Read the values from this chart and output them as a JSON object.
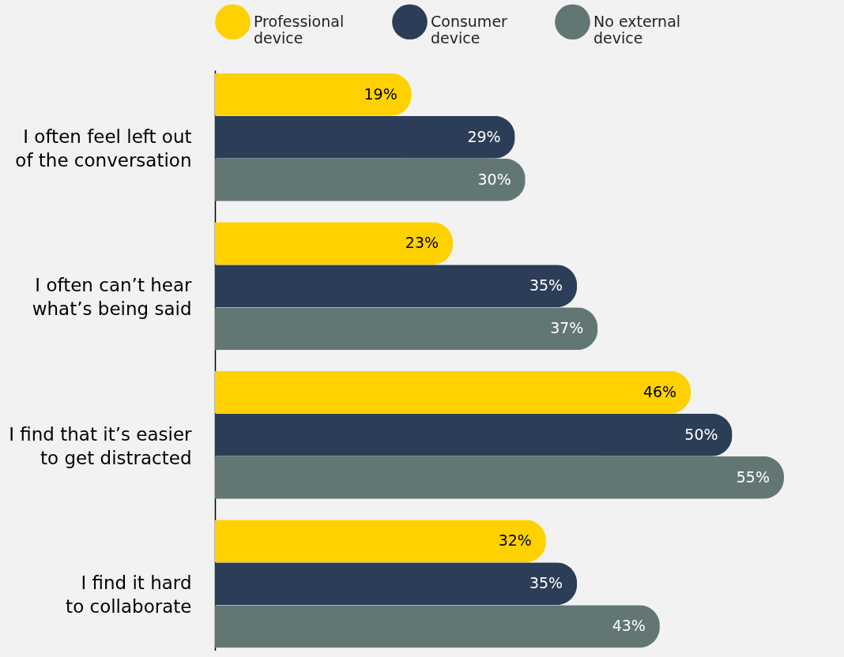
{
  "chart_data": {
    "type": "bar",
    "orientation": "horizontal",
    "legend": "top",
    "categories": [
      "I often feel left out of the conversation",
      "I often can’t hear what’s being said",
      "I find that it’s easier to get distracted",
      "I find it hard to collaborate"
    ],
    "xlim": [
      0,
      55
    ],
    "series": [
      {
        "name": "Professional device",
        "color": "#ffd100",
        "values": [
          19,
          23,
          46,
          32
        ],
        "value_labels": [
          "19%",
          "23%",
          "46%",
          "32%"
        ]
      },
      {
        "name": "Consumer device",
        "color": "#2b3d57",
        "values": [
          29,
          35,
          50,
          35
        ],
        "value_labels": [
          "29%",
          "35%",
          "50%",
          "35%"
        ]
      },
      {
        "name": "No external device",
        "color": "#627773",
        "values": [
          30,
          37,
          55,
          43
        ],
        "value_labels": [
          "30%",
          "37%",
          "55%",
          "43%"
        ]
      }
    ]
  }
}
